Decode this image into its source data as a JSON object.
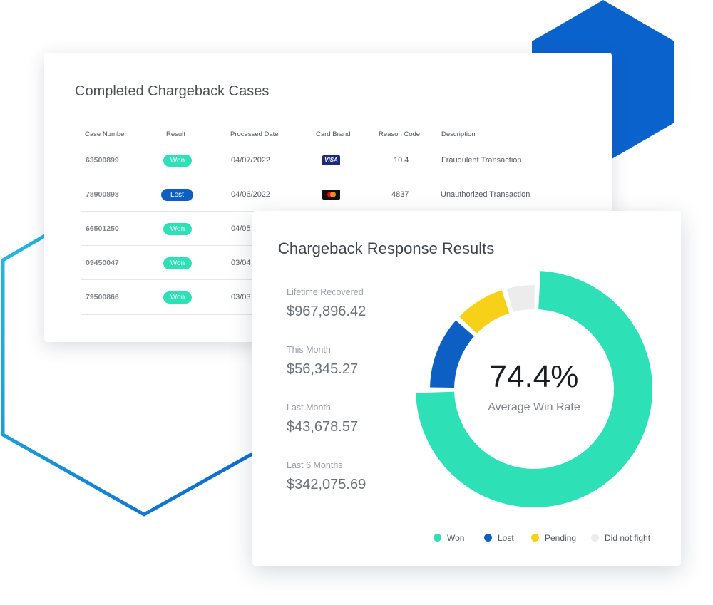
{
  "colors": {
    "won": "#2ee0b6",
    "lost": "#0d5fc4",
    "pending": "#f7d117",
    "did_not_fight": "#ececec",
    "hex_cyan": "#27c2e3",
    "hex_blue": "#0b5fcc"
  },
  "cases_card": {
    "title": "Completed Chargeback Cases",
    "columns": [
      "Case Number",
      "Result",
      "Processed Date",
      "Card Brand",
      "Reason Code",
      "Description"
    ],
    "rows": [
      {
        "case_number": "63500899",
        "result": "Won",
        "date": "04/07/2022",
        "brand": "visa",
        "brand_label": "VISA",
        "reason_code": "10.4",
        "description": "Fraudulent Transaction"
      },
      {
        "case_number": "78900898",
        "result": "Lost",
        "date": "04/06/2022",
        "brand": "mastercard",
        "reason_code": "4837",
        "description": "Unauthorized Transaction"
      },
      {
        "case_number": "66501250",
        "result": "Won",
        "date": "04/05"
      },
      {
        "case_number": "09450047",
        "result": "Won",
        "date": "03/04"
      },
      {
        "case_number": "79500866",
        "result": "Won",
        "date": "03/03"
      }
    ]
  },
  "results_card": {
    "title": "Chargeback Response Results",
    "stats": [
      {
        "label": "Lifetime Recovered",
        "value": "$967,896.42"
      },
      {
        "label": "This Month",
        "value": "$56,345.27"
      },
      {
        "label": "Last Month",
        "value": "$43,678.57"
      },
      {
        "label": "Last 6 Months",
        "value": "$342,075.69"
      }
    ],
    "center_value": "74.4%",
    "center_label": "Average Win Rate",
    "legend": [
      {
        "label": "Won",
        "color": "#2ee0b6"
      },
      {
        "label": "Lost",
        "color": "#0d5fc4"
      },
      {
        "label": "Pending",
        "color": "#f7d117"
      },
      {
        "label": "Did not fight",
        "color": "#ececec"
      }
    ]
  },
  "chart_data": {
    "type": "pie",
    "title": "Chargeback Response Results",
    "categories": [
      "Won",
      "Lost",
      "Pending",
      "Did not fight"
    ],
    "values": [
      74.4,
      12.0,
      8.5,
      5.1
    ],
    "unit": "%",
    "legend_position": "bottom"
  }
}
